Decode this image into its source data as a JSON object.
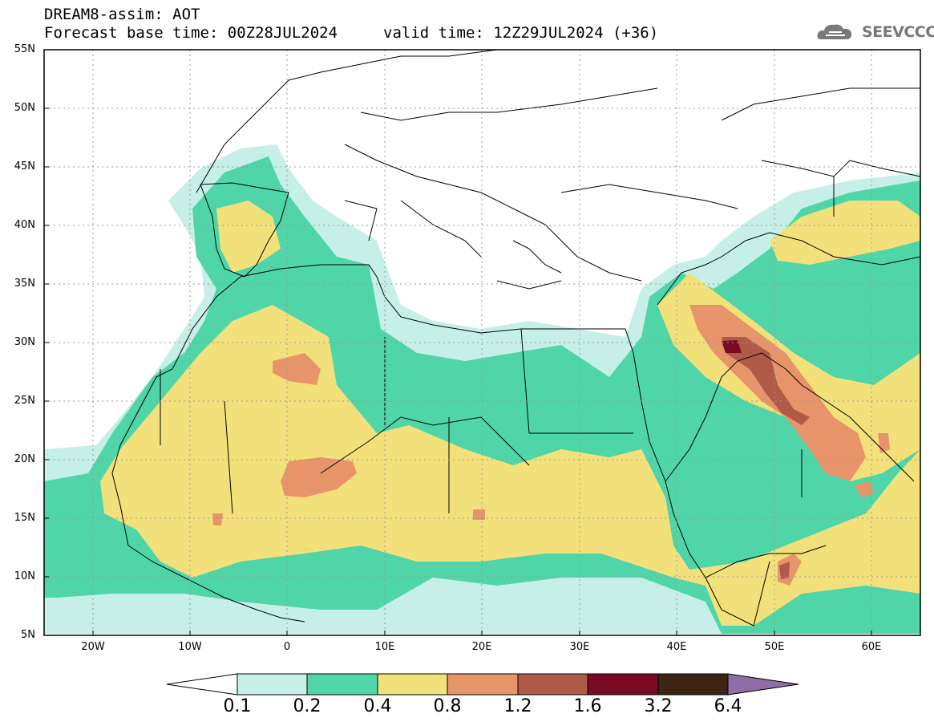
{
  "header": {
    "title_line1": "DREAM8-assim: AOT",
    "base_time": "Forecast base time: 00Z28JUL2024",
    "valid_time": "valid time: 12Z29JUL2024 (+36)",
    "logo_text": "SEEVCCC"
  },
  "map": {
    "variable": "AOT",
    "lat_labels": [
      "55N",
      "50N",
      "45N",
      "40N",
      "35N",
      "30N",
      "25N",
      "20N",
      "15N",
      "10N",
      "5N"
    ],
    "lon_labels": [
      "20W",
      "10W",
      "0",
      "10E",
      "20E",
      "30E",
      "40E",
      "50E",
      "60E"
    ],
    "lat_range": [
      5,
      55
    ],
    "lon_range": [
      -25,
      65
    ]
  },
  "legend": {
    "levels": [
      "0.1",
      "0.2",
      "0.4",
      "0.8",
      "1.2",
      "1.6",
      "3.2",
      "6.4"
    ],
    "colors": [
      "#ffffff",
      "#c6efe8",
      "#4fd5a8",
      "#f2e17a",
      "#e8946a",
      "#b05a48",
      "#7a0a24",
      "#3c2312",
      "#8f6ea8"
    ]
  }
}
